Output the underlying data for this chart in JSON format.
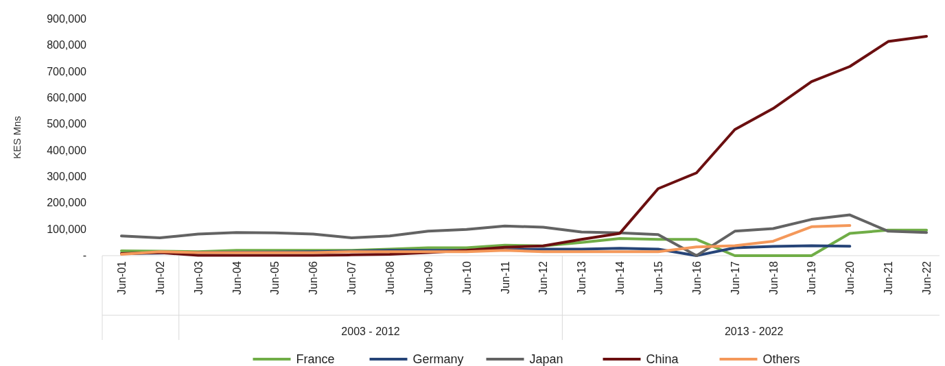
{
  "chart_data": {
    "type": "line",
    "ylabel": "KES Mns",
    "categories": [
      "Jun-01",
      "Jun-02",
      "Jun-03",
      "Jun-04",
      "Jun-05",
      "Jun-06",
      "Jun-07",
      "Jun-08",
      "Jun-09",
      "Jun-10",
      "Jun-11",
      "Jun-12",
      "Jun-13",
      "Jun-14",
      "Jun-15",
      "Jun-16",
      "Jun-17",
      "Jun-18",
      "Jun-19",
      "Jun-20",
      "Jun-21",
      "Jun-22"
    ],
    "series": [
      {
        "name": "France",
        "color": "#70ad47",
        "values": [
          18000,
          17000,
          15000,
          20000,
          20000,
          20000,
          20000,
          25000,
          30000,
          30000,
          40000,
          37000,
          50000,
          65000,
          62000,
          62000,
          0,
          0,
          0,
          85000,
          97000,
          97000
        ]
      },
      {
        "name": "Germany",
        "color": "#264478",
        "values": [
          8000,
          10000,
          12000,
          13000,
          14000,
          15000,
          17000,
          20000,
          20000,
          20000,
          22000,
          25000,
          25000,
          28000,
          25000,
          0,
          30000,
          35000,
          38000,
          36000,
          null,
          null
        ]
      },
      {
        "name": "Japan",
        "color": "#636363",
        "values": [
          75000,
          68000,
          82000,
          88000,
          87000,
          82000,
          68000,
          75000,
          93000,
          100000,
          113000,
          108000,
          90000,
          87000,
          80000,
          0,
          93000,
          103000,
          138000,
          155000,
          93000,
          88000
        ]
      },
      {
        "name": "China",
        "color": "#6b0f10",
        "values": [
          8000,
          12000,
          1000,
          1000,
          1000,
          1000,
          3000,
          5000,
          12000,
          20000,
          32000,
          37000,
          62000,
          85000,
          255000,
          315000,
          480000,
          560000,
          662000,
          720000,
          815000,
          835000
        ]
      },
      {
        "name": "Others",
        "color": "#f4985a",
        "values": [
          5000,
          15000,
          12000,
          12000,
          12000,
          12000,
          15000,
          15000,
          15000,
          15000,
          20000,
          15000,
          15000,
          15000,
          15000,
          33000,
          38000,
          55000,
          110000,
          115000,
          null,
          null
        ]
      }
    ],
    "ylim": [
      0,
      900000
    ],
    "yticks": [
      {
        "value": 0,
        "label": "-"
      },
      {
        "value": 100000,
        "label": "100,000"
      },
      {
        "value": 200000,
        "label": "200,000"
      },
      {
        "value": 300000,
        "label": "300,000"
      },
      {
        "value": 400000,
        "label": "400,000"
      },
      {
        "value": 500000,
        "label": "500,000"
      },
      {
        "value": 600000,
        "label": "600,000"
      },
      {
        "value": 700000,
        "label": "700,000"
      },
      {
        "value": 800000,
        "label": "800,000"
      },
      {
        "value": 900000,
        "label": "900,000"
      }
    ],
    "annotations": [
      "2003 - 2012",
      "2013 - 2022"
    ],
    "legend": "bottom",
    "marker": "none",
    "line_style": "solid",
    "grid": false
  }
}
